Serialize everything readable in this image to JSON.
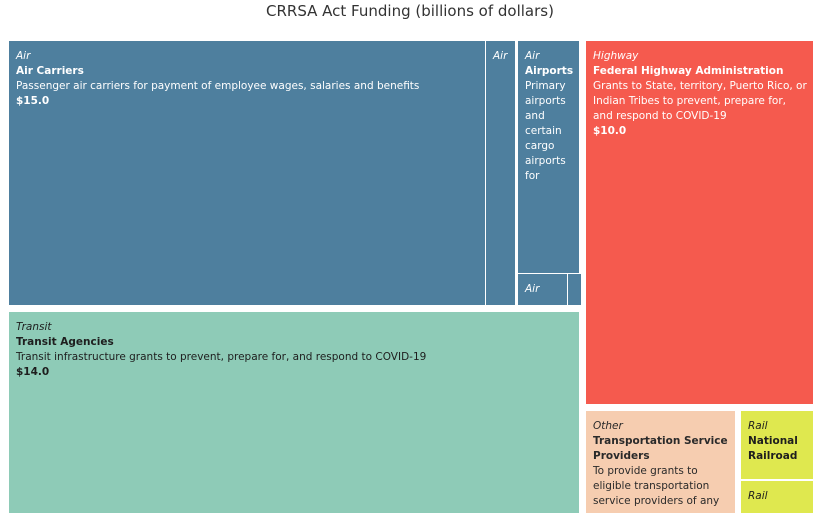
{
  "chart_data": {
    "type": "treemap",
    "title": "CRRSA Act Funding (billions of dollars)",
    "value_unit": "billions of dollars",
    "tiles": [
      {
        "category": "Air",
        "name": "Air Carriers",
        "description": "Passenger air carriers for payment of employee wages, salaries and benefits",
        "value_label": "$15.0",
        "value": 15.0
      },
      {
        "category": "Air",
        "name": "",
        "description": "",
        "value_label": "",
        "value": null
      },
      {
        "category": "Air",
        "name": "Airports",
        "description": "Primary airports and certain cargo airports for",
        "value_label": "",
        "value": null
      },
      {
        "category": "Air",
        "name": "",
        "description": "",
        "value_label": "",
        "value": null
      },
      {
        "category": "",
        "name": "",
        "description": "",
        "value_label": "",
        "value": null
      },
      {
        "category": "Transit",
        "name": "Transit Agencies",
        "description": "Transit infrastructure grants to prevent, prepare for, and respond to COVID-19",
        "value_label": "$14.0",
        "value": 14.0
      },
      {
        "category": "Highway",
        "name": "Federal Highway Administration",
        "description": "Grants to State, territory, Puerto Rico, or Indian Tribes to prevent, prepare for, and respond to COVID-19",
        "value_label": "$10.0",
        "value": 10.0
      },
      {
        "category": "Other",
        "name": "Transportation Service Providers",
        "description": "To provide grants to eligible transportation service providers of any",
        "value_label": "",
        "value": null
      },
      {
        "category": "Rail",
        "name": "National Railroad",
        "description": "",
        "value_label": "",
        "value": null
      },
      {
        "category": "Rail",
        "name": "",
        "description": "",
        "value_label": "",
        "value": null
      }
    ],
    "colors": {
      "Air": "#4e7f9e",
      "Transit": "#8ecbb7",
      "Highway": "#f55a4e",
      "Other": "#f6cdb0",
      "Rail": "#dfe84f"
    }
  }
}
